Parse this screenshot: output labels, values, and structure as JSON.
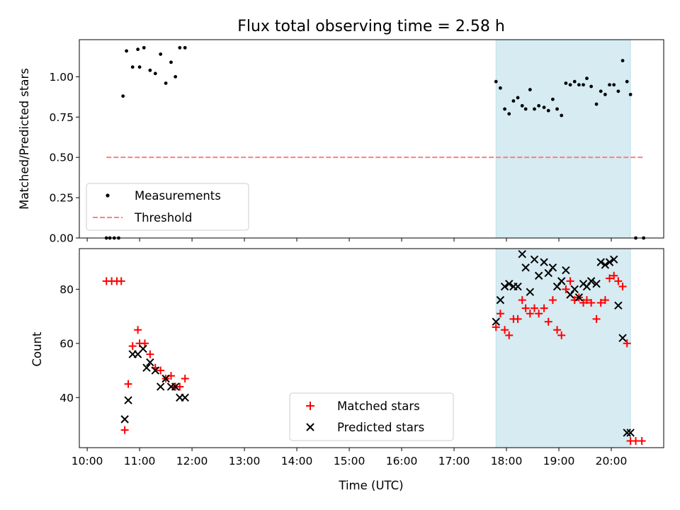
{
  "chart_data": [
    {
      "type": "scatter",
      "title": "Flux total observing time = 2.58 h",
      "ylabel": "Matched/Predicted stars",
      "xlabel": "",
      "ylim": [
        0,
        1.23
      ],
      "yticks": [
        "0.00",
        "0.25",
        "0.50",
        "0.75",
        "1.00"
      ],
      "shaded_region": {
        "start": "17:48",
        "end": "20:22",
        "color": "#add8e6"
      },
      "legend": "lower-left",
      "series": [
        {
          "name": "Measurements",
          "marker": "dot",
          "color": "#000000",
          "x": [
            "10:22",
            "10:26",
            "10:31",
            "10:36",
            "10:41",
            "10:45",
            "10:52",
            "10:58",
            "11:00",
            "11:05",
            "11:12",
            "11:18",
            "11:24",
            "11:30",
            "11:36",
            "11:41",
            "11:46",
            "11:52",
            "17:48",
            "17:53",
            "17:58",
            "18:03",
            "18:08",
            "18:13",
            "18:18",
            "18:22",
            "18:27",
            "18:32",
            "18:37",
            "18:43",
            "18:48",
            "18:53",
            "18:58",
            "19:03",
            "19:08",
            "19:13",
            "19:18",
            "19:23",
            "19:28",
            "19:32",
            "19:37",
            "19:43",
            "19:48",
            "19:53",
            "19:58",
            "20:03",
            "20:08",
            "20:13",
            "20:18",
            "20:22",
            "20:28",
            "20:37"
          ],
          "y": [
            0.0,
            0.0,
            0.0,
            0.0,
            0.88,
            1.16,
            1.06,
            1.17,
            1.06,
            1.18,
            1.04,
            1.02,
            1.14,
            0.96,
            1.09,
            1.0,
            1.18,
            1.18,
            0.97,
            0.93,
            0.8,
            0.77,
            0.85,
            0.87,
            0.82,
            0.8,
            0.92,
            0.8,
            0.82,
            0.81,
            0.79,
            0.86,
            0.8,
            0.76,
            0.96,
            0.95,
            0.97,
            0.95,
            0.95,
            0.99,
            0.94,
            0.83,
            0.91,
            0.89,
            0.95,
            0.95,
            0.91,
            1.1,
            0.97,
            0.89,
            0.0,
            0.0
          ]
        },
        {
          "name": "Threshold",
          "line": "dashed",
          "color": "#ff7f7f",
          "x": [
            "10:22",
            "20:37"
          ],
          "y": [
            0.5,
            0.5
          ]
        }
      ]
    },
    {
      "type": "scatter",
      "title": "",
      "ylabel": "Count",
      "xlabel": "Time (UTC)",
      "ylim": [
        21.5,
        95
      ],
      "yticks": [
        "40",
        "60",
        "80"
      ],
      "xticks": [
        "10:00",
        "11:00",
        "12:00",
        "13:00",
        "14:00",
        "15:00",
        "16:00",
        "17:00",
        "18:00",
        "19:00",
        "20:00"
      ],
      "shaded_region": {
        "start": "17:48",
        "end": "20:22",
        "color": "#add8e6"
      },
      "legend": "lower-center",
      "series": [
        {
          "name": "Matched stars",
          "marker": "plus",
          "color": "#ff0000",
          "x": [
            "10:22",
            "10:28",
            "10:34",
            "10:39",
            "10:43",
            "10:47",
            "10:52",
            "10:58",
            "11:00",
            "11:06",
            "11:12",
            "11:18",
            "11:24",
            "11:30",
            "11:36",
            "11:41",
            "11:46",
            "11:52",
            "17:48",
            "17:53",
            "17:58",
            "18:03",
            "18:08",
            "18:13",
            "18:18",
            "18:22",
            "18:27",
            "18:32",
            "18:37",
            "18:43",
            "18:48",
            "18:53",
            "18:58",
            "19:03",
            "19:08",
            "19:13",
            "19:18",
            "19:23",
            "19:28",
            "19:32",
            "19:37",
            "19:43",
            "19:48",
            "19:53",
            "19:58",
            "20:03",
            "20:08",
            "20:13",
            "20:18",
            "20:22",
            "20:28",
            "20:35"
          ],
          "y": [
            83,
            83,
            83,
            83,
            28,
            45,
            59,
            65,
            60,
            60,
            56,
            51,
            50,
            47,
            48,
            44,
            44,
            47,
            66,
            71,
            65,
            63,
            69,
            69,
            76,
            73,
            71,
            73,
            71,
            73,
            68,
            76,
            65,
            63,
            80,
            83,
            76,
            77,
            75,
            76,
            75,
            69,
            75,
            76,
            84,
            85,
            83,
            81,
            60,
            24,
            24,
            24
          ]
        },
        {
          "name": "Predicted stars",
          "marker": "x",
          "color": "#000000",
          "x": [
            "10:43",
            "10:47",
            "10:52",
            "10:58",
            "11:04",
            "11:08",
            "11:12",
            "11:18",
            "11:24",
            "11:30",
            "11:36",
            "11:41",
            "11:46",
            "11:52",
            "17:48",
            "17:53",
            "17:58",
            "18:03",
            "18:08",
            "18:13",
            "18:18",
            "18:22",
            "18:27",
            "18:32",
            "18:37",
            "18:43",
            "18:48",
            "18:53",
            "18:58",
            "19:03",
            "19:08",
            "19:13",
            "19:18",
            "19:23",
            "19:28",
            "19:32",
            "19:37",
            "19:43",
            "19:48",
            "19:53",
            "19:58",
            "20:03",
            "20:08",
            "20:13",
            "20:18",
            "20:22"
          ],
          "y": [
            32,
            39,
            56,
            56,
            58,
            51,
            53,
            50,
            44,
            47,
            44,
            44,
            40,
            40,
            68,
            76,
            81,
            82,
            81,
            81,
            93,
            88,
            79,
            91,
            85,
            90,
            86,
            88,
            81,
            83,
            87,
            78,
            80,
            77,
            82,
            81,
            83,
            82,
            90,
            89,
            90,
            91,
            74,
            62,
            27,
            27
          ]
        }
      ]
    }
  ]
}
